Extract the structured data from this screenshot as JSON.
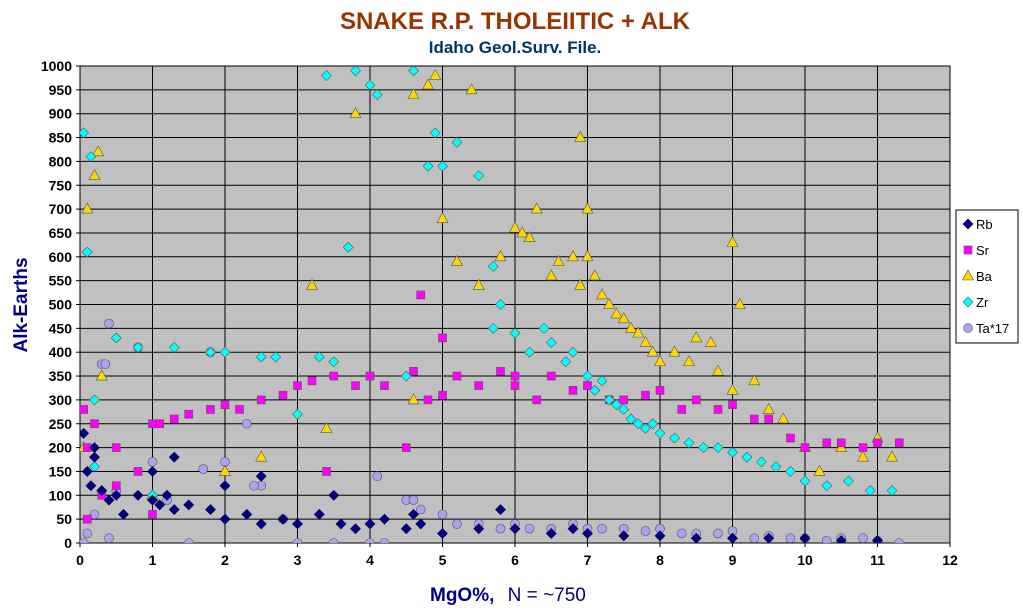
{
  "chart_data": {
    "type": "scatter",
    "title": "SNAKE R.P. THOLEIITIC + ALK",
    "subtitle": "Idaho Geol.Surv. File.",
    "xlabel": "MgO%,",
    "xlabel_note": "N = ~750",
    "ylabel": "Alk-Earths",
    "xlim": [
      0,
      12
    ],
    "ylim": [
      0,
      1000
    ],
    "x_ticks": [
      "0",
      "1",
      "2",
      "3",
      "4",
      "5",
      "6",
      "7",
      "8",
      "9",
      "10",
      "11",
      "12"
    ],
    "y_ticks": [
      "0",
      "50",
      "100",
      "150",
      "200",
      "250",
      "300",
      "350",
      "400",
      "450",
      "500",
      "550",
      "600",
      "650",
      "700",
      "750",
      "800",
      "850",
      "900",
      "950",
      "1000"
    ],
    "grid": "major, both axes",
    "legend_position": "right",
    "colors": {
      "title": "#993300",
      "subtitle": "#003366",
      "axis_title": "#000080",
      "plot_bg": "#C0C0C0"
    },
    "series": [
      {
        "name": "Rb",
        "marker": "diamond",
        "color": "#000080",
        "x": [
          0.05,
          0.1,
          0.15,
          0.2,
          0.3,
          0.4,
          0.6,
          0.8,
          1.0,
          1.1,
          1.2,
          1.3,
          1.5,
          1.8,
          2.0,
          2.3,
          2.5,
          2.8,
          3.0,
          3.3,
          3.6,
          3.8,
          4.0,
          4.2,
          4.5,
          4.7,
          5.0,
          5.5,
          6.0,
          6.5,
          7.0,
          7.5,
          8.0,
          8.5,
          9.0,
          9.5,
          10.0,
          10.5,
          11.0,
          0.2,
          0.5,
          1.0,
          1.3,
          2.0,
          2.5,
          3.5,
          4.6,
          5.8,
          6.8
        ],
        "y": [
          230,
          150,
          120,
          200,
          110,
          90,
          60,
          100,
          90,
          80,
          100,
          70,
          80,
          70,
          50,
          60,
          40,
          50,
          40,
          60,
          40,
          30,
          40,
          50,
          30,
          40,
          20,
          30,
          30,
          20,
          20,
          15,
          15,
          10,
          10,
          10,
          10,
          5,
          5,
          180,
          100,
          150,
          180,
          120,
          140,
          100,
          60,
          70,
          30
        ]
      },
      {
        "name": "Sr",
        "marker": "square",
        "color": "#FF00FF",
        "x": [
          0.05,
          0.1,
          0.2,
          0.3,
          0.5,
          0.8,
          1.0,
          1.1,
          1.3,
          1.5,
          1.8,
          2.0,
          2.2,
          2.5,
          2.8,
          3.0,
          3.2,
          3.5,
          3.8,
          4.0,
          4.2,
          4.6,
          4.8,
          5.0,
          5.2,
          5.5,
          5.8,
          6.0,
          6.3,
          6.5,
          6.8,
          7.0,
          7.3,
          7.5,
          7.8,
          8.0,
          8.3,
          8.5,
          8.8,
          9.0,
          9.3,
          9.5,
          9.8,
          10.0,
          10.3,
          10.5,
          10.8,
          11.0,
          11.3,
          0.1,
          0.5,
          1.0,
          3.4,
          4.5,
          4.7,
          5.0,
          6.0
        ],
        "y": [
          280,
          200,
          250,
          100,
          200,
          150,
          250,
          250,
          260,
          270,
          280,
          290,
          280,
          300,
          310,
          330,
          340,
          350,
          330,
          350,
          330,
          360,
          300,
          310,
          350,
          330,
          360,
          330,
          300,
          350,
          320,
          330,
          300,
          300,
          310,
          320,
          280,
          300,
          280,
          290,
          260,
          260,
          220,
          200,
          210,
          210,
          200,
          210,
          210,
          50,
          120,
          60,
          150,
          200,
          520,
          430,
          350
        ]
      },
      {
        "name": "Ba",
        "marker": "triangle",
        "color": "#FFD700",
        "x": [
          0.1,
          0.2,
          0.25,
          0.3,
          1.0,
          2.0,
          2.5,
          3.2,
          3.4,
          3.8,
          4.6,
          4.8,
          4.9,
          5.0,
          5.2,
          5.5,
          5.8,
          6.0,
          6.1,
          6.2,
          6.3,
          6.5,
          6.6,
          6.8,
          6.9,
          7.0,
          7.1,
          7.2,
          7.3,
          7.4,
          7.5,
          7.6,
          7.7,
          7.8,
          7.9,
          8.0,
          8.2,
          8.4,
          8.5,
          8.7,
          8.8,
          9.0,
          9.1,
          9.3,
          9.5,
          9.7,
          10.0,
          10.2,
          10.5,
          10.8,
          11.0,
          11.2,
          0.05,
          4.6,
          5.4,
          6.9,
          7.0,
          9.0
        ],
        "y": [
          700,
          770,
          820,
          350,
          100,
          150,
          180,
          540,
          240,
          900,
          300,
          960,
          980,
          680,
          590,
          540,
          600,
          660,
          650,
          640,
          700,
          560,
          590,
          600,
          540,
          600,
          560,
          520,
          500,
          480,
          470,
          450,
          440,
          420,
          400,
          380,
          400,
          380,
          430,
          420,
          360,
          320,
          500,
          340,
          280,
          260,
          200,
          150,
          200,
          180,
          220,
          180,
          200,
          940,
          950,
          850,
          700,
          630
        ]
      },
      {
        "name": "Zr",
        "marker": "diamond",
        "color": "#00FFFF",
        "x": [
          0.05,
          0.1,
          0.15,
          0.2,
          0.5,
          0.8,
          1.3,
          1.8,
          2.0,
          2.5,
          2.7,
          3.0,
          3.3,
          3.5,
          3.4,
          3.7,
          3.8,
          4.0,
          4.1,
          4.6,
          4.8,
          4.9,
          5.0,
          5.2,
          5.5,
          5.7,
          5.8,
          6.0,
          6.2,
          6.4,
          6.5,
          6.7,
          6.8,
          7.0,
          7.1,
          7.2,
          7.3,
          7.4,
          7.5,
          7.6,
          7.7,
          7.8,
          7.9,
          8.0,
          8.2,
          8.4,
          8.6,
          8.8,
          9.0,
          9.2,
          9.4,
          9.6,
          9.8,
          10.0,
          10.3,
          10.6,
          10.9,
          11.2,
          0.2,
          1.0,
          4.5,
          5.7
        ],
        "y": [
          860,
          610,
          810,
          300,
          430,
          410,
          410,
          400,
          400,
          390,
          390,
          270,
          390,
          380,
          980,
          620,
          990,
          960,
          940,
          990,
          790,
          860,
          790,
          840,
          770,
          580,
          500,
          440,
          400,
          450,
          420,
          380,
          400,
          350,
          320,
          340,
          300,
          290,
          280,
          260,
          250,
          240,
          250,
          230,
          220,
          210,
          200,
          200,
          190,
          180,
          170,
          160,
          150,
          130,
          120,
          130,
          110,
          110,
          160,
          100,
          350,
          450
        ]
      },
      {
        "name": "Ta*17",
        "marker": "circle",
        "color": "#B0A0F0",
        "x": [
          0.05,
          0.1,
          0.2,
          0.3,
          0.4,
          0.5,
          0.8,
          1.0,
          1.2,
          1.5,
          1.8,
          2.0,
          2.3,
          2.5,
          2.8,
          3.0,
          3.5,
          4.0,
          4.2,
          4.5,
          4.7,
          5.0,
          5.2,
          5.5,
          5.8,
          6.0,
          6.2,
          6.5,
          6.8,
          7.0,
          7.2,
          7.5,
          7.8,
          8.0,
          8.3,
          8.5,
          8.8,
          9.0,
          9.3,
          9.5,
          9.8,
          10.0,
          10.3,
          10.5,
          10.8,
          11.0,
          11.3,
          0.35,
          0.4,
          1.7,
          2.4,
          4.1,
          4.6
        ],
        "y": [
          0,
          20,
          60,
          375,
          460,
          110,
          410,
          170,
          90,
          0,
          400,
          170,
          250,
          120,
          50,
          0,
          0,
          0,
          0,
          90,
          70,
          60,
          40,
          40,
          30,
          40,
          30,
          30,
          40,
          30,
          30,
          30,
          25,
          30,
          20,
          20,
          20,
          25,
          10,
          15,
          10,
          10,
          5,
          10,
          10,
          5,
          0,
          375,
          10,
          155,
          120,
          140,
          90
        ]
      }
    ]
  }
}
